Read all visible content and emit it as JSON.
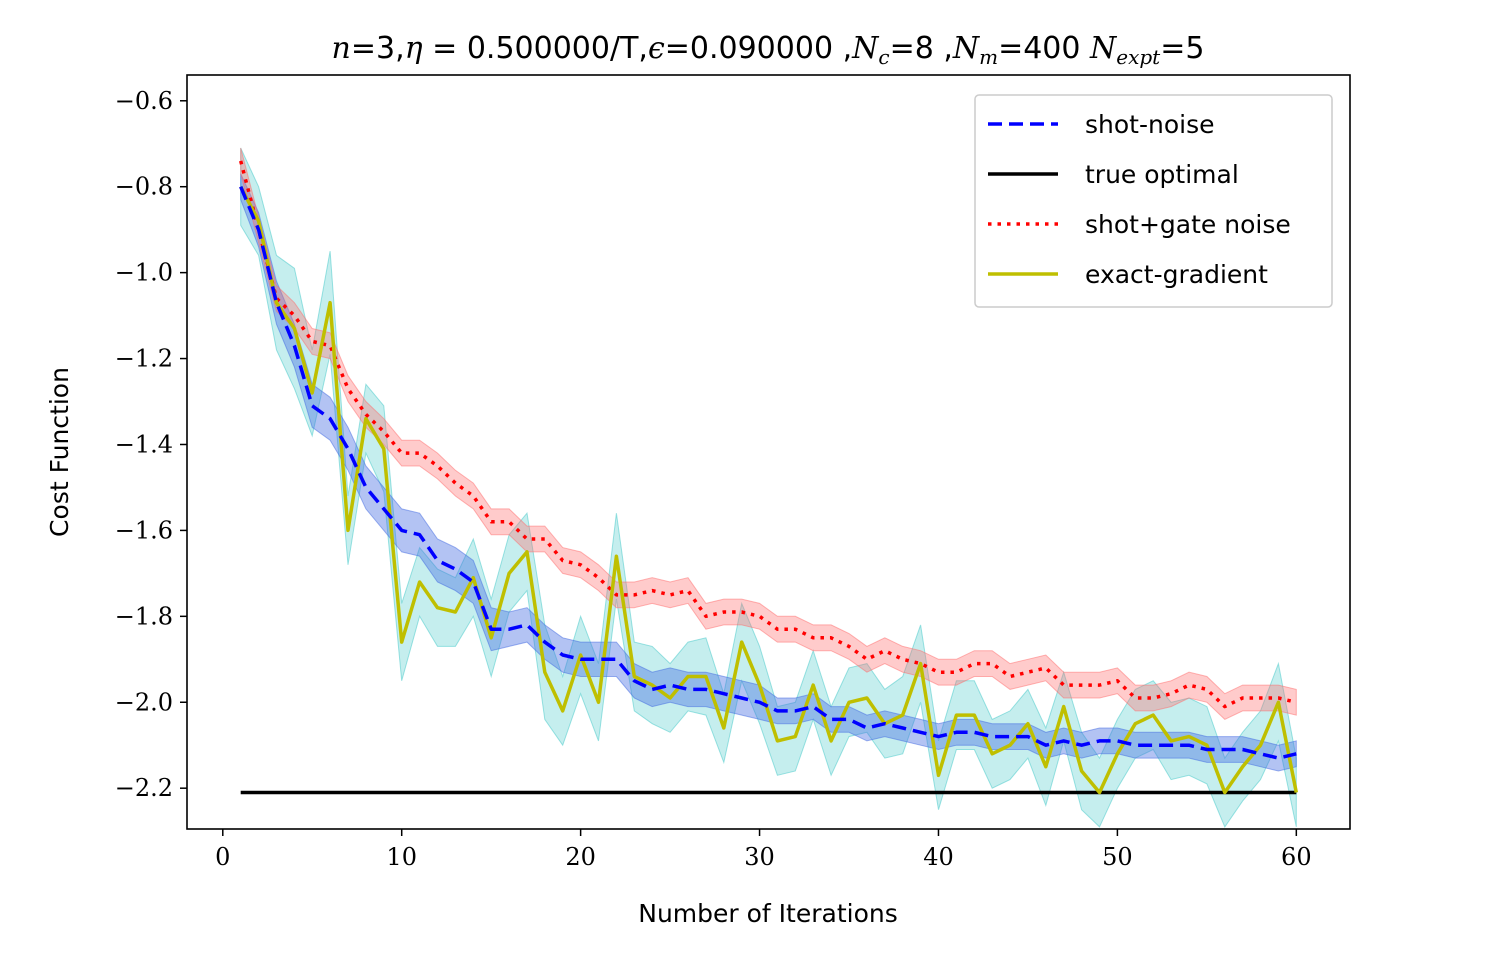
{
  "chart_data": {
    "type": "line",
    "title": "n=3,η = 0.500000/T,ϵ=0.090000 ,N_c=8 ,N_m=400 N_expt=5",
    "xlabel": "Number of Iterations",
    "ylabel": "Cost Function",
    "xlim": [
      -2,
      63
    ],
    "ylim": [
      -2.295,
      -0.54
    ],
    "xticks": [
      0,
      10,
      20,
      30,
      40,
      50,
      60
    ],
    "yticks": [
      -2.2,
      -2.0,
      -1.8,
      -1.6,
      -1.4,
      -1.2,
      -1.0,
      -0.8,
      -0.6
    ],
    "ytick_labels": [
      "−2.2",
      "−2.0",
      "−1.8",
      "−1.6",
      "−1.4",
      "−1.2",
      "−1.0",
      "−0.8",
      "−0.6"
    ],
    "grid": false,
    "legend_position": "top-right",
    "colors": {
      "shot_noise": "#0000ff",
      "shot_noise_band": "#4169e1",
      "true_optimal": "#000000",
      "shot_gate_noise": "#ff0000",
      "shot_gate_band": "#ff6b6b",
      "exact_gradient": "#bfbf00",
      "exact_gradient_band": "#40c8c8"
    },
    "series": [
      {
        "name": "shot-noise",
        "style": "dashed",
        "x": [
          1,
          2,
          3,
          4,
          5,
          6,
          7,
          8,
          9,
          10,
          11,
          12,
          13,
          14,
          15,
          16,
          17,
          18,
          19,
          20,
          21,
          22,
          23,
          24,
          25,
          26,
          27,
          28,
          29,
          30,
          31,
          32,
          33,
          34,
          35,
          36,
          37,
          38,
          39,
          40,
          41,
          42,
          43,
          44,
          45,
          46,
          47,
          48,
          49,
          50,
          51,
          52,
          53,
          54,
          55,
          56,
          57,
          58,
          59,
          60
        ],
        "y": [
          -0.8,
          -0.9,
          -1.07,
          -1.17,
          -1.31,
          -1.34,
          -1.41,
          -1.5,
          -1.55,
          -1.6,
          -1.61,
          -1.67,
          -1.69,
          -1.72,
          -1.83,
          -1.83,
          -1.82,
          -1.86,
          -1.89,
          -1.9,
          -1.9,
          -1.9,
          -1.95,
          -1.97,
          -1.96,
          -1.97,
          -1.97,
          -1.98,
          -1.99,
          -2.0,
          -2.02,
          -2.02,
          -2.01,
          -2.04,
          -2.04,
          -2.06,
          -2.05,
          -2.06,
          -2.07,
          -2.08,
          -2.07,
          -2.07,
          -2.08,
          -2.08,
          -2.08,
          -2.1,
          -2.09,
          -2.1,
          -2.09,
          -2.09,
          -2.1,
          -2.1,
          -2.1,
          -2.1,
          -2.11,
          -2.11,
          -2.11,
          -2.12,
          -2.13,
          -2.12
        ],
        "band": [
          0.03,
          0.04,
          0.05,
          0.05,
          0.05,
          0.05,
          0.05,
          0.05,
          0.05,
          0.05,
          0.05,
          0.05,
          0.05,
          0.05,
          0.05,
          0.04,
          0.04,
          0.04,
          0.04,
          0.04,
          0.04,
          0.04,
          0.04,
          0.04,
          0.04,
          0.04,
          0.04,
          0.04,
          0.04,
          0.04,
          0.03,
          0.03,
          0.03,
          0.03,
          0.03,
          0.03,
          0.03,
          0.03,
          0.03,
          0.03,
          0.03,
          0.03,
          0.03,
          0.03,
          0.03,
          0.03,
          0.03,
          0.03,
          0.03,
          0.03,
          0.03,
          0.03,
          0.03,
          0.03,
          0.03,
          0.03,
          0.03,
          0.03,
          0.03,
          0.03
        ]
      },
      {
        "name": "true optimal",
        "style": "solid",
        "x": [
          1,
          60
        ],
        "y": [
          -2.21,
          -2.21
        ]
      },
      {
        "name": "shot+gate noise",
        "style": "dotted",
        "x": [
          1,
          2,
          3,
          4,
          5,
          6,
          7,
          8,
          9,
          10,
          11,
          12,
          13,
          14,
          15,
          16,
          17,
          18,
          19,
          20,
          21,
          22,
          23,
          24,
          25,
          26,
          27,
          28,
          29,
          30,
          31,
          32,
          33,
          34,
          35,
          36,
          37,
          38,
          39,
          40,
          41,
          42,
          43,
          44,
          45,
          46,
          47,
          48,
          49,
          50,
          51,
          52,
          53,
          54,
          55,
          56,
          57,
          58,
          59,
          60
        ],
        "y": [
          -0.74,
          -0.9,
          -1.06,
          -1.1,
          -1.16,
          -1.17,
          -1.27,
          -1.33,
          -1.37,
          -1.42,
          -1.42,
          -1.45,
          -1.49,
          -1.52,
          -1.58,
          -1.58,
          -1.62,
          -1.62,
          -1.67,
          -1.68,
          -1.71,
          -1.75,
          -1.75,
          -1.74,
          -1.75,
          -1.74,
          -1.8,
          -1.79,
          -1.79,
          -1.8,
          -1.83,
          -1.83,
          -1.85,
          -1.85,
          -1.87,
          -1.9,
          -1.88,
          -1.9,
          -1.91,
          -1.93,
          -1.93,
          -1.91,
          -1.91,
          -1.94,
          -1.93,
          -1.92,
          -1.96,
          -1.96,
          -1.96,
          -1.95,
          -1.99,
          -1.99,
          -1.98,
          -1.96,
          -1.97,
          -2.01,
          -1.99,
          -1.99,
          -1.99,
          -2.0
        ],
        "band": [
          0.03,
          0.03,
          0.03,
          0.03,
          0.03,
          0.03,
          0.03,
          0.03,
          0.03,
          0.03,
          0.03,
          0.03,
          0.03,
          0.03,
          0.03,
          0.03,
          0.03,
          0.03,
          0.03,
          0.03,
          0.03,
          0.03,
          0.03,
          0.03,
          0.03,
          0.03,
          0.03,
          0.03,
          0.03,
          0.03,
          0.03,
          0.03,
          0.03,
          0.03,
          0.03,
          0.03,
          0.03,
          0.03,
          0.03,
          0.03,
          0.03,
          0.03,
          0.03,
          0.03,
          0.03,
          0.03,
          0.03,
          0.03,
          0.03,
          0.03,
          0.03,
          0.03,
          0.03,
          0.03,
          0.03,
          0.03,
          0.03,
          0.03,
          0.03,
          0.03
        ]
      },
      {
        "name": "exact-gradient",
        "style": "solid",
        "x": [
          1,
          2,
          3,
          4,
          5,
          6,
          7,
          8,
          9,
          10,
          11,
          12,
          13,
          14,
          15,
          16,
          17,
          18,
          19,
          20,
          21,
          22,
          23,
          24,
          25,
          26,
          27,
          28,
          29,
          30,
          31,
          32,
          33,
          34,
          35,
          36,
          37,
          38,
          39,
          40,
          41,
          42,
          43,
          44,
          45,
          46,
          47,
          48,
          49,
          50,
          51,
          52,
          53,
          54,
          55,
          56,
          57,
          58,
          59,
          60
        ],
        "y": [
          -0.8,
          -0.88,
          -1.07,
          -1.13,
          -1.28,
          -1.07,
          -1.6,
          -1.34,
          -1.41,
          -1.86,
          -1.72,
          -1.78,
          -1.79,
          -1.71,
          -1.85,
          -1.7,
          -1.65,
          -1.93,
          -2.02,
          -1.89,
          -2.0,
          -1.66,
          -1.94,
          -1.96,
          -1.99,
          -1.94,
          -1.94,
          -2.06,
          -1.86,
          -1.96,
          -2.09,
          -2.08,
          -1.96,
          -2.09,
          -2.0,
          -1.99,
          -2.05,
          -2.03,
          -1.91,
          -2.17,
          -2.03,
          -2.03,
          -2.12,
          -2.1,
          -2.05,
          -2.15,
          -2.01,
          -2.16,
          -2.21,
          -2.12,
          -2.05,
          -2.03,
          -2.09,
          -2.08,
          -2.1,
          -2.21,
          -2.15,
          -2.1,
          -2.0,
          -2.21
        ],
        "band": [
          0.09,
          0.08,
          0.11,
          0.14,
          0.1,
          0.12,
          0.08,
          0.08,
          0.1,
          0.09,
          0.08,
          0.09,
          0.08,
          0.09,
          0.09,
          0.09,
          0.09,
          0.11,
          0.08,
          0.09,
          0.09,
          0.1,
          0.08,
          0.09,
          0.08,
          0.08,
          0.09,
          0.08,
          0.09,
          0.09,
          0.08,
          0.08,
          0.08,
          0.08,
          0.08,
          0.08,
          0.08,
          0.09,
          0.09,
          0.08,
          0.08,
          0.08,
          0.08,
          0.08,
          0.08,
          0.09,
          0.08,
          0.09,
          0.08,
          0.08,
          0.08,
          0.08,
          0.09,
          0.09,
          0.09,
          0.08,
          0.08,
          0.08,
          0.09,
          0.08
        ]
      }
    ]
  }
}
